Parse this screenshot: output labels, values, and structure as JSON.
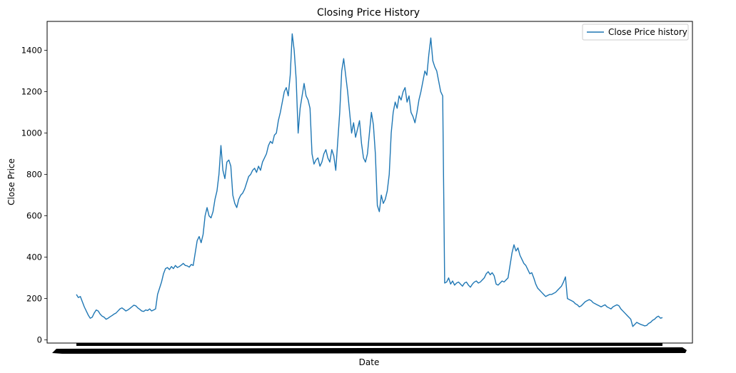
{
  "chart_data": {
    "type": "line",
    "title": "Closing Price History",
    "xlabel": "Date",
    "ylabel": "Close Price",
    "ylim": [
      -15,
      1540
    ],
    "yticks": [
      0,
      200,
      400,
      600,
      800,
      1000,
      1200,
      1400
    ],
    "legend": {
      "position": "top-right",
      "entries": [
        "Close Price history"
      ]
    },
    "grid": false,
    "color": "#1f77b4",
    "x_tick_labels_note_visible": "",
    "series": [
      {
        "name": "Close Price history",
        "values": [
          220,
          205,
          210,
          185,
          160,
          140,
          120,
          105,
          110,
          130,
          145,
          140,
          125,
          115,
          110,
          100,
          105,
          112,
          118,
          125,
          130,
          140,
          150,
          155,
          148,
          140,
          145,
          152,
          160,
          168,
          165,
          155,
          148,
          140,
          138,
          145,
          142,
          150,
          140,
          145,
          150,
          220,
          250,
          280,
          320,
          345,
          350,
          340,
          355,
          345,
          360,
          350,
          355,
          362,
          370,
          360,
          358,
          352,
          365,
          360,
          420,
          480,
          500,
          470,
          510,
          600,
          640,
          600,
          590,
          620,
          680,
          720,
          800,
          940,
          820,
          780,
          860,
          870,
          840,
          700,
          660,
          640,
          680,
          700,
          710,
          730,
          760,
          790,
          800,
          820,
          830,
          810,
          840,
          820,
          860,
          880,
          900,
          940,
          960,
          950,
          990,
          1000,
          1060,
          1100,
          1150,
          1200,
          1220,
          1180,
          1280,
          1480,
          1400,
          1260,
          1000,
          1120,
          1180,
          1240,
          1180,
          1160,
          1120,
          900,
          850,
          870,
          880,
          840,
          860,
          900,
          920,
          880,
          860,
          920,
          890,
          820,
          960,
          1100,
          1300,
          1360,
          1280,
          1200,
          1100,
          1000,
          1050,
          980,
          1020,
          1060,
          950,
          880,
          860,
          900,
          1000,
          1100,
          1040,
          900,
          650,
          620,
          700,
          660,
          680,
          720,
          800,
          1000,
          1100,
          1150,
          1120,
          1180,
          1160,
          1200,
          1220,
          1150,
          1180,
          1100,
          1080,
          1050,
          1100,
          1160,
          1200,
          1250,
          1300,
          1280,
          1380,
          1460,
          1350,
          1320,
          1300,
          1250,
          1200,
          1180,
          275,
          280,
          300,
          270,
          285,
          265,
          275,
          280,
          270,
          260,
          275,
          280,
          265,
          255,
          270,
          280,
          285,
          275,
          280,
          290,
          300,
          320,
          330,
          315,
          325,
          310,
          270,
          265,
          275,
          285,
          280,
          290,
          300,
          360,
          420,
          460,
          430,
          445,
          410,
          390,
          370,
          360,
          340,
          320,
          325,
          300,
          270,
          250,
          240,
          230,
          220,
          210,
          215,
          220,
          220,
          225,
          230,
          240,
          250,
          260,
          280,
          305,
          200,
          195,
          190,
          185,
          175,
          170,
          160,
          165,
          175,
          185,
          190,
          195,
          190,
          180,
          175,
          170,
          165,
          160,
          165,
          170,
          160,
          155,
          150,
          160,
          165,
          170,
          165,
          150,
          140,
          130,
          120,
          110,
          100,
          65,
          75,
          85,
          80,
          75,
          72,
          68,
          70,
          80,
          85,
          95,
          100,
          110,
          115,
          105,
          108
        ]
      }
    ]
  }
}
